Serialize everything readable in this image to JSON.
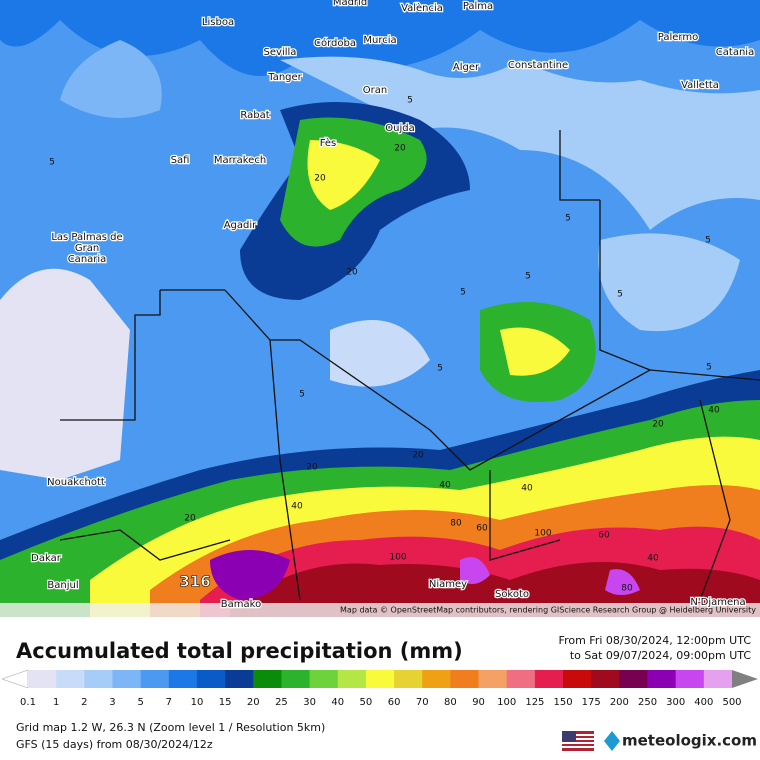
{
  "map": {
    "cities": [
      "Madrid",
      "València",
      "Palma",
      "Lisboa",
      "Sevilla",
      "Córdoba",
      "Murcia",
      "Palermo",
      "Catania",
      "Tanger",
      "Alger",
      "Constantine",
      "Valletta",
      "Oran",
      "Rabat",
      "Oujda",
      "Fès",
      "Safi",
      "Marrakech",
      "Agadir",
      "Las Palmas de",
      "Gran",
      "Canaria",
      "Nouakchott",
      "Dakar",
      "Banjul",
      "Bamako",
      "Niamey",
      "Sokoto",
      "N'Djamena"
    ],
    "contour_labels": [
      5,
      20,
      20,
      20,
      5,
      5,
      5,
      5,
      5,
      5,
      5,
      5,
      20,
      40,
      20,
      40,
      40,
      60,
      80,
      100,
      60,
      80,
      40,
      20,
      40,
      5,
      20,
      100
    ],
    "max_label": "316",
    "attribution": "Map data © OpenStreetMap contributors, rendering GIScience Research Group @ Heidelberg University"
  },
  "legend": {
    "title": "Accumulated total precipitation (mm)",
    "period_from": "From Fri 08/30/2024, 12:00pm UTC",
    "period_to": "to Sat 09/07/2024, 09:00pm UTC",
    "scale": [
      0.1,
      1,
      2,
      3,
      5,
      7,
      10,
      15,
      20,
      25,
      30,
      40,
      50,
      60,
      70,
      80,
      90,
      100,
      125,
      150,
      175,
      200,
      250,
      300,
      400,
      500
    ],
    "colors": [
      "#ffffff",
      "#e3e3f3",
      "#c8dcfa",
      "#a6cdf8",
      "#7cb6f6",
      "#4b99f0",
      "#1c78e6",
      "#0a5ac8",
      "#0a3c96",
      "#0a8c0a",
      "#2db22d",
      "#6ed23c",
      "#b4e646",
      "#fafa3c",
      "#e6d232",
      "#f0a014",
      "#f07d1e",
      "#f5a064",
      "#f06e82",
      "#e61e50",
      "#c80a0a",
      "#a00a1e",
      "#780050",
      "#8c00b4",
      "#c846f0",
      "#e6a0f0",
      "#f0e6f5",
      "#d2d2d2",
      "#808080"
    ],
    "info1": "Grid map 1.2 W, 26.3 N (Zoom level 1 / Resolution 5km)",
    "info2": "GFS (15 days) from  08/30/2024/12z",
    "brand": "meteologix.com"
  }
}
